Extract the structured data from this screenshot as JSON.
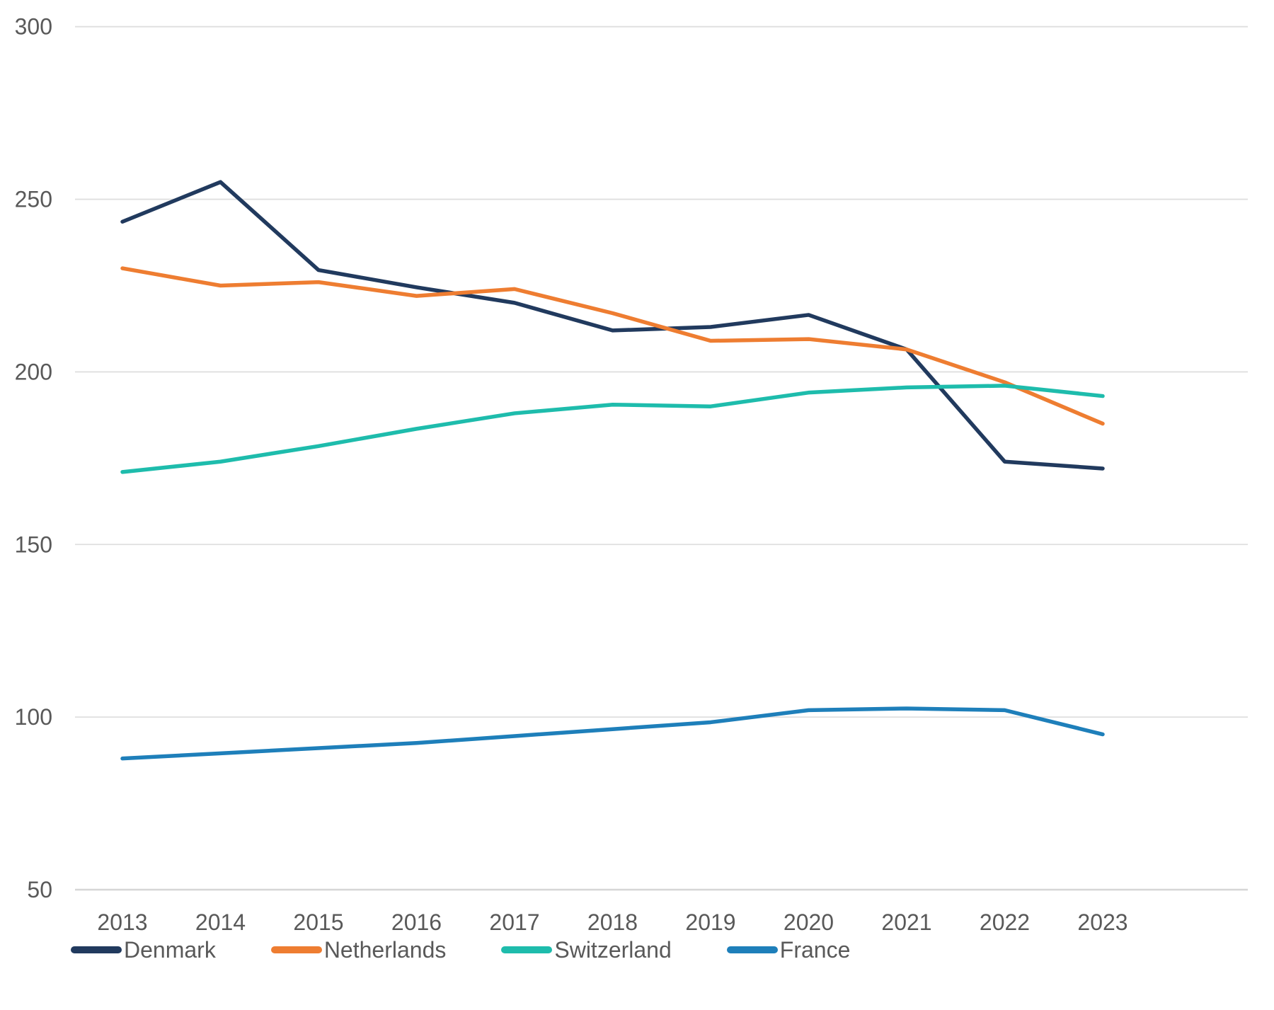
{
  "chart_data": {
    "type": "line",
    "title": "",
    "xlabel": "",
    "ylabel": "",
    "x": [
      "2013",
      "2014",
      "2015",
      "2016",
      "2017",
      "2018",
      "2019",
      "2020",
      "2021",
      "2022",
      "2023"
    ],
    "series": [
      {
        "name": "Denmark",
        "color": "#213A5E",
        "values": [
          243.5,
          255,
          229.5,
          224.5,
          220,
          212,
          213,
          216.5,
          206.5,
          174,
          172
        ]
      },
      {
        "name": "Netherlands",
        "color": "#EE7D31",
        "values": [
          230,
          225,
          226,
          222,
          224,
          217,
          209,
          209.5,
          206.5,
          197,
          185
        ]
      },
      {
        "name": "Switzerland",
        "color": "#1EBCAC",
        "values": [
          171,
          174,
          178.5,
          183.5,
          188,
          190.5,
          190,
          194,
          195.5,
          196,
          193
        ]
      },
      {
        "name": "France",
        "color": "#1E7FBA",
        "values": [
          88,
          89.5,
          91,
          92.5,
          94.5,
          96.5,
          98.5,
          102,
          102.5,
          102,
          95
        ]
      }
    ],
    "y_ticks": [
      300,
      250,
      200,
      150,
      100,
      50
    ],
    "ylim": [
      50,
      300
    ],
    "grid": "horizontal",
    "legend_position": "bottom-left",
    "colors": {
      "axis_text": "#595959",
      "gridline": "#DFDFDF",
      "baseline": "#D6D6D6",
      "background": "#FFFFFF"
    }
  }
}
